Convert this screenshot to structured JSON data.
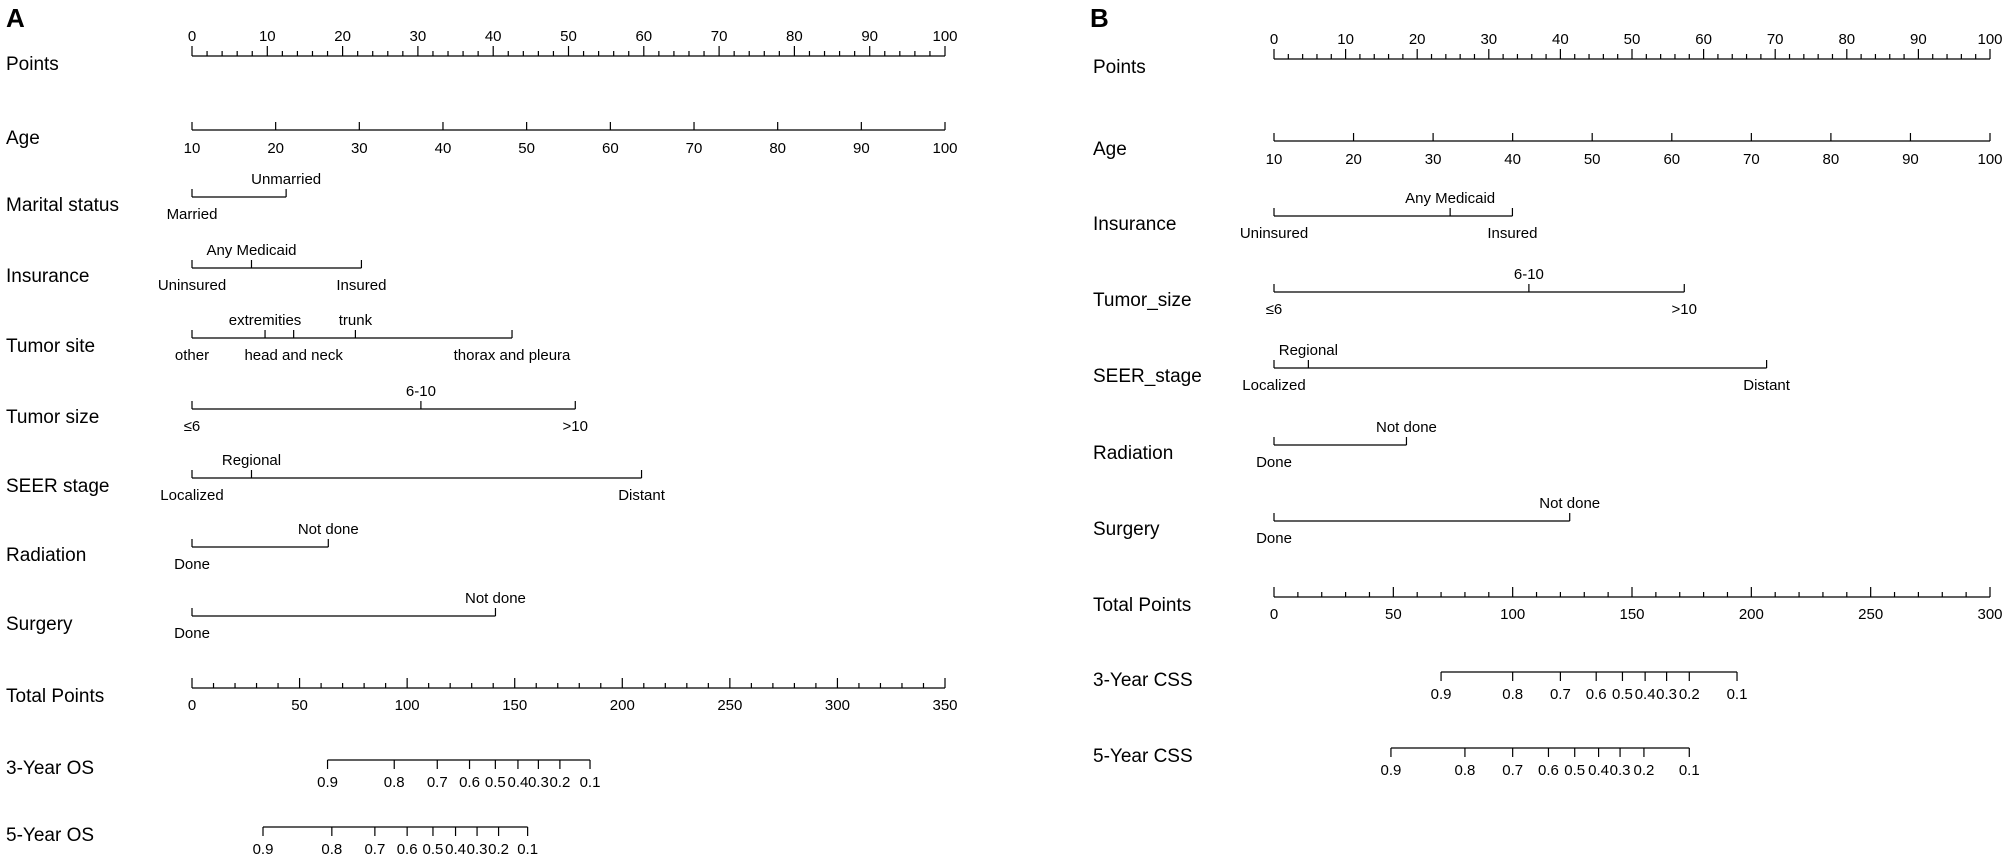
{
  "chart_data": [
    {
      "type": "nomogram",
      "panel_label": "A",
      "points_range": [
        0,
        100
      ],
      "total_points_range": [
        0,
        350
      ],
      "rows": [
        {
          "label": "Points",
          "kind": "points",
          "min": 0,
          "max": 100,
          "ticks": [
            0,
            10,
            20,
            30,
            40,
            50,
            60,
            70,
            80,
            90,
            100
          ],
          "minor_step": 2
        },
        {
          "label": "Age",
          "kind": "continuous",
          "ticks": [
            10,
            20,
            30,
            40,
            50,
            60,
            70,
            80,
            90,
            100
          ],
          "points": [
            0,
            11.11,
            22.22,
            33.33,
            44.44,
            55.56,
            66.67,
            77.78,
            88.89,
            100
          ]
        },
        {
          "label": "Marital  status",
          "kind": "categorical",
          "levels": [
            {
              "name": "Married",
              "points": 0,
              "side": "below"
            },
            {
              "name": "Unmarried",
              "points": 12.5,
              "side": "above"
            }
          ]
        },
        {
          "label": "Insurance",
          "kind": "categorical",
          "levels": [
            {
              "name": "Uninsured",
              "points": 0,
              "side": "below"
            },
            {
              "name": "Any Medicaid",
              "points": 7.9,
              "side": "above"
            },
            {
              "name": "Insured",
              "points": 22.5,
              "side": "below"
            }
          ]
        },
        {
          "label": "Tumor  site",
          "kind": "categorical",
          "levels": [
            {
              "name": "other",
              "points": 0,
              "side": "below"
            },
            {
              "name": "extremities",
              "points": 9.7,
              "side": "above"
            },
            {
              "name": "head and neck",
              "points": 13.5,
              "side": "below"
            },
            {
              "name": "trunk",
              "points": 21.7,
              "side": "above"
            },
            {
              "name": "thorax and pleura",
              "points": 42.5,
              "side": "below"
            }
          ]
        },
        {
          "label": "Tumor  size",
          "kind": "categorical",
          "levels": [
            {
              "name": "≤6",
              "points": 0,
              "side": "below"
            },
            {
              "name": "6-10",
              "points": 30.4,
              "side": "above"
            },
            {
              "name": ">10",
              "points": 50.9,
              "side": "below"
            }
          ]
        },
        {
          "label": "SEER  stage",
          "kind": "categorical",
          "levels": [
            {
              "name": "Localized",
              "points": 0,
              "side": "below"
            },
            {
              "name": "Regional",
              "points": 7.9,
              "side": "above"
            },
            {
              "name": "Distant",
              "points": 59.7,
              "side": "below"
            }
          ]
        },
        {
          "label": "Radiation",
          "kind": "categorical",
          "levels": [
            {
              "name": "Done",
              "points": 0,
              "side": "below"
            },
            {
              "name": "Not done",
              "points": 18.1,
              "side": "above"
            }
          ]
        },
        {
          "label": "Surgery",
          "kind": "categorical",
          "levels": [
            {
              "name": "Done",
              "points": 0,
              "side": "below"
            },
            {
              "name": "Not done",
              "points": 40.3,
              "side": "above"
            }
          ]
        },
        {
          "label": "Total Points",
          "kind": "total",
          "ticks": [
            0,
            50,
            100,
            150,
            200,
            250,
            300,
            350
          ],
          "minor_step": 10
        },
        {
          "label": "3-Year OS",
          "kind": "probability",
          "ticks": [
            0.9,
            0.8,
            0.7,
            0.6,
            0.5,
            0.4,
            0.3,
            0.2,
            0.1
          ],
          "tick_labels": [
            "0.9",
            "0.8",
            "0.7",
            "0.6",
            "0.5",
            "0.4",
            "0.3",
            "0.2",
            "0.1"
          ],
          "total_points": [
            63,
            94,
            114,
            129,
            141,
            151.5,
            161,
            171,
            185
          ]
        },
        {
          "label": "5-Year OS",
          "kind": "probability",
          "ticks": [
            0.9,
            0.8,
            0.7,
            0.6,
            0.5,
            0.4,
            0.3,
            0.2,
            0.1
          ],
          "tick_labels": [
            "0.9",
            "0.8",
            "0.7",
            "0.6",
            "0.5",
            "0.4",
            "0.3",
            "0.2",
            "0.1"
          ],
          "total_points": [
            33,
            65,
            85,
            100,
            112,
            122.5,
            132.5,
            142.5,
            156
          ]
        }
      ]
    },
    {
      "type": "nomogram",
      "panel_label": "B",
      "points_range": [
        0,
        100
      ],
      "total_points_range": [
        0,
        300
      ],
      "rows": [
        {
          "label": "Points",
          "kind": "points",
          "min": 0,
          "max": 100,
          "ticks": [
            0,
            10,
            20,
            30,
            40,
            50,
            60,
            70,
            80,
            90,
            100
          ],
          "minor_step": 2
        },
        {
          "label": "Age",
          "kind": "continuous",
          "ticks": [
            10,
            20,
            30,
            40,
            50,
            60,
            70,
            80,
            90,
            100
          ],
          "points": [
            0,
            11.11,
            22.22,
            33.33,
            44.44,
            55.56,
            66.67,
            77.78,
            88.89,
            100
          ]
        },
        {
          "label": "Insurance",
          "kind": "categorical",
          "levels": [
            {
              "name": "Uninsured",
              "points": 0,
              "side": "below"
            },
            {
              "name": "Any Medicaid",
              "points": 24.6,
              "side": "above"
            },
            {
              "name": "Insured",
              "points": 33.3,
              "side": "below"
            }
          ]
        },
        {
          "label": "Tumor_size",
          "kind": "categorical",
          "levels": [
            {
              "name": "≤6",
              "points": 0,
              "side": "below"
            },
            {
              "name": "6-10",
              "points": 35.6,
              "side": "above"
            },
            {
              "name": ">10",
              "points": 57.3,
              "side": "below"
            }
          ]
        },
        {
          "label": "SEER_stage",
          "kind": "categorical",
          "levels": [
            {
              "name": "Localized",
              "points": 0,
              "side": "below"
            },
            {
              "name": "Regional",
              "points": 4.8,
              "side": "above"
            },
            {
              "name": "Distant",
              "points": 68.8,
              "side": "below"
            }
          ]
        },
        {
          "label": "Radiation",
          "kind": "categorical",
          "levels": [
            {
              "name": "Done",
              "points": 0,
              "side": "below"
            },
            {
              "name": "Not done",
              "points": 18.5,
              "side": "above"
            }
          ]
        },
        {
          "label": "Surgery",
          "kind": "categorical",
          "levels": [
            {
              "name": "Done",
              "points": 0,
              "side": "below"
            },
            {
              "name": "Not done",
              "points": 41.3,
              "side": "above"
            }
          ]
        },
        {
          "label": "Total Points",
          "kind": "total",
          "ticks": [
            0,
            50,
            100,
            150,
            200,
            250,
            300
          ],
          "minor_step": 10
        },
        {
          "label": "3-Year CSS",
          "kind": "probability",
          "ticks": [
            0.9,
            0.8,
            0.7,
            0.6,
            0.5,
            0.4,
            0.3,
            0.2,
            0.1
          ],
          "tick_labels": [
            "0.9",
            "0.8",
            "0.7",
            "0.6",
            "0.5",
            "0.4",
            "0.3",
            "0.2",
            "0.1"
          ],
          "total_points": [
            70,
            100,
            120,
            135,
            146,
            155.5,
            164.5,
            174,
            194
          ]
        },
        {
          "label": "5-Year CSS",
          "kind": "probability",
          "ticks": [
            0.9,
            0.8,
            0.7,
            0.6,
            0.5,
            0.4,
            0.3,
            0.2,
            0.1
          ],
          "tick_labels": [
            "0.9",
            "0.8",
            "0.7",
            "0.6",
            "0.5",
            "0.4",
            "0.3",
            "0.2",
            "0.1"
          ],
          "total_points": [
            49,
            80,
            100,
            115,
            126,
            136,
            145,
            155,
            174
          ]
        }
      ]
    }
  ]
}
